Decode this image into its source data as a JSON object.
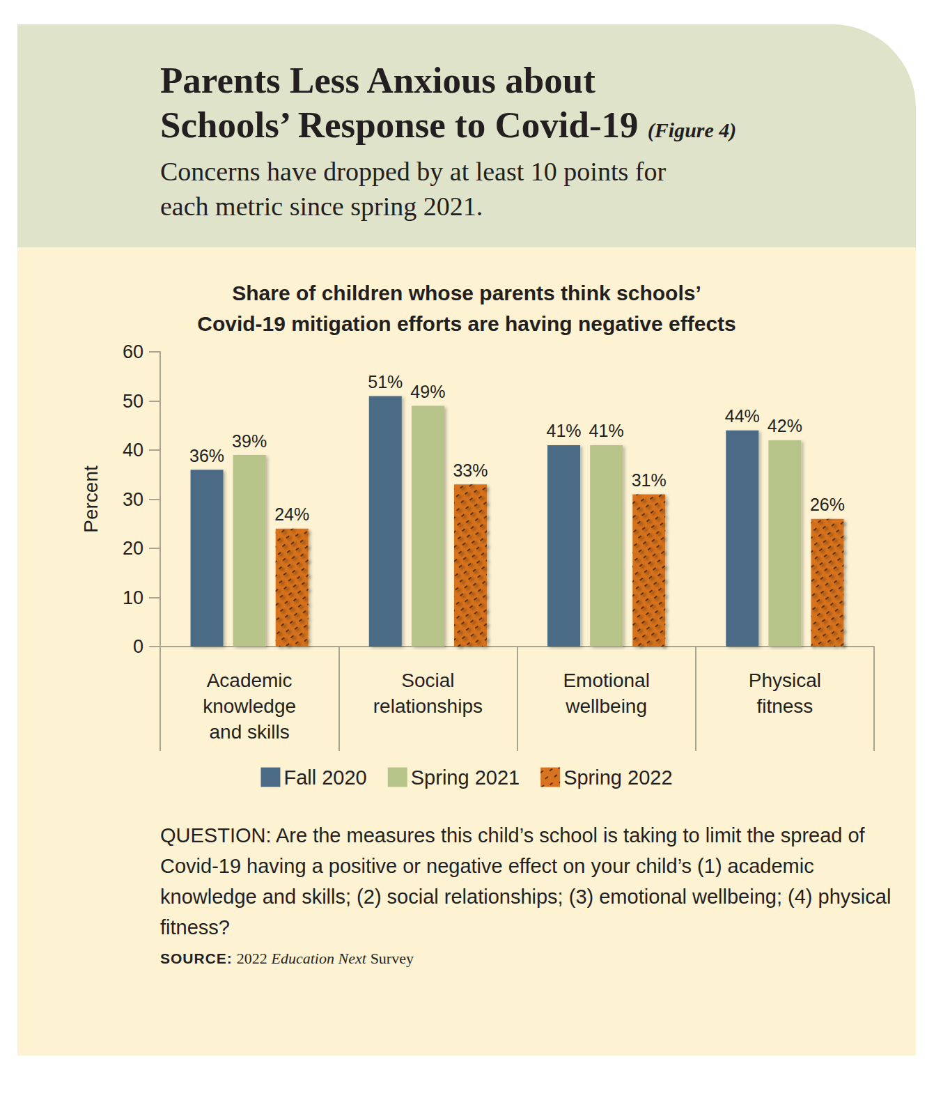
{
  "chart_data": {
    "type": "bar",
    "header_title": "Parents Less Anxious about\nSchools’ Response to Covid-19",
    "figure_label": "(Figure 4)",
    "header_subtitle": "Concerns have dropped by at least 10 points for\neach metric since spring 2021.",
    "title": "Share of children whose parents think schools’\nCovid-19 mitigation efforts are having negative effects",
    "y_label": "Percent",
    "categories": [
      "Academic\nknowledge\nand skills",
      "Social\nrelationships",
      "Emotional\nwellbeing",
      "Physical\nfitness"
    ],
    "series": [
      {
        "name": "Fall 2020",
        "color": "#4b6a86",
        "values": [
          36,
          51,
          41,
          44
        ],
        "value_labels": [
          "36%",
          "51%",
          "41%",
          "44%"
        ]
      },
      {
        "name": "Spring 2021",
        "color": "#b6c489",
        "values": [
          39,
          49,
          41,
          42
        ],
        "value_labels": [
          "39%",
          "49%",
          "41%",
          "42%"
        ]
      },
      {
        "name": "Spring 2022",
        "color": "#d8731f",
        "values": [
          24,
          33,
          31,
          26
        ],
        "value_labels": [
          "24%",
          "33%",
          "31%",
          "26%"
        ]
      }
    ],
    "ylim": [
      0,
      60
    ],
    "yticks": [
      0,
      10,
      20,
      30,
      40,
      50,
      60
    ],
    "grid": false,
    "legend": "bottom",
    "data_labels": true,
    "note": "QUESTION: Are the measures this child’s school is taking to limit the spread of Covid-19 having a positive or negative effect on your child’s (1) academic knowledge and skills; (2) social relationships; (3) emotional wellbeing; (4) physical fitness?",
    "source": {
      "label": "SOURCE:",
      "year": "2022",
      "publication": "Education Next",
      "suffix": "Survey"
    }
  }
}
